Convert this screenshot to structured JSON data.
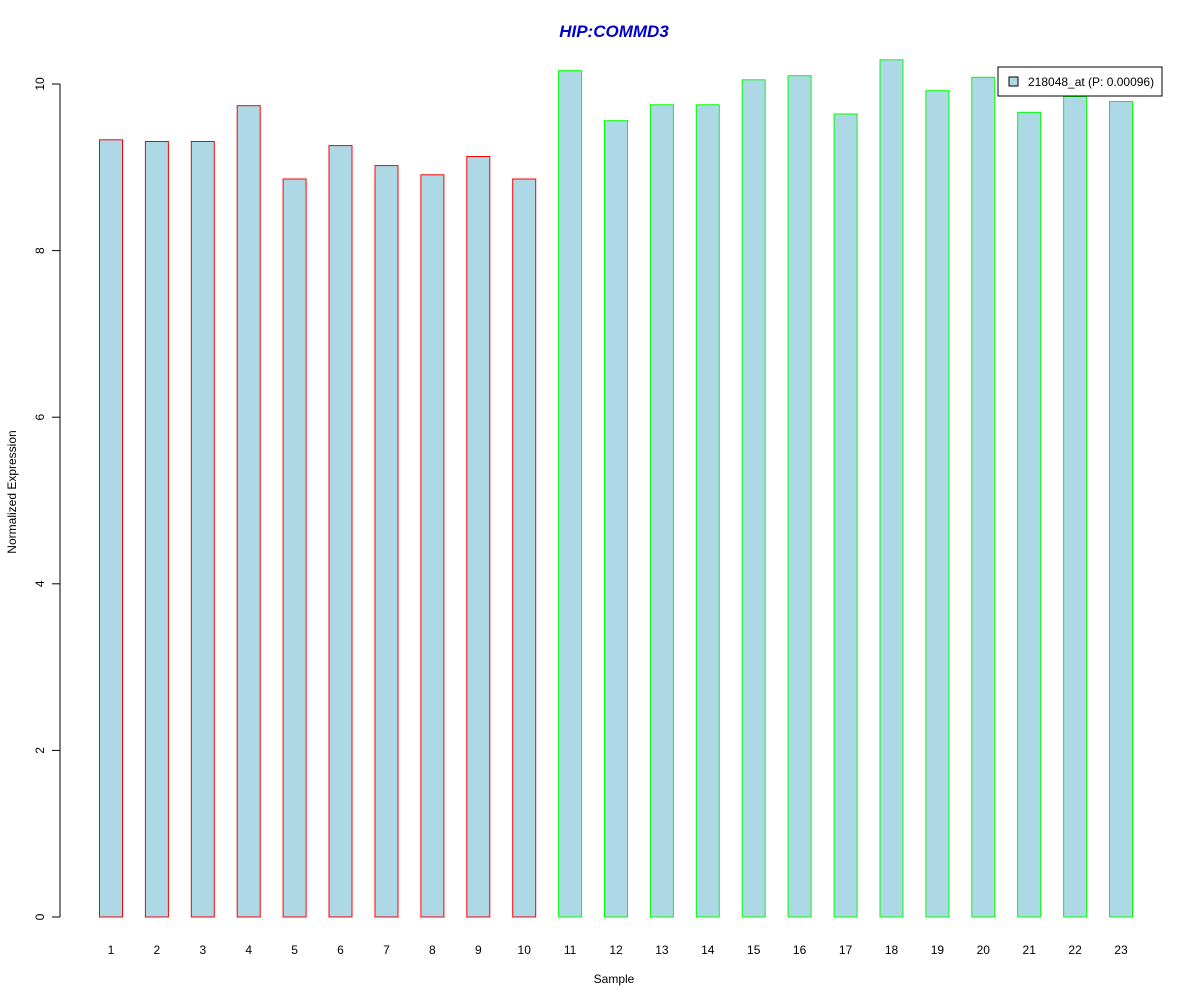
{
  "chart_data": {
    "type": "bar",
    "title": "HIP:COMMD3",
    "xlabel": "Sample",
    "ylabel": "Normalized Expression",
    "ylim": [
      0,
      10.4
    ],
    "yticks": [
      0,
      2,
      4,
      6,
      8,
      10
    ],
    "categories": [
      "1",
      "2",
      "3",
      "4",
      "5",
      "6",
      "7",
      "8",
      "9",
      "10",
      "11",
      "12",
      "13",
      "14",
      "15",
      "16",
      "17",
      "18",
      "19",
      "20",
      "21",
      "22",
      "23"
    ],
    "series": [
      {
        "name": "218048_at (P: 0.00096)",
        "values": [
          9.33,
          9.31,
          9.31,
          9.74,
          8.86,
          9.26,
          9.02,
          8.91,
          9.13,
          8.86,
          10.16,
          9.56,
          9.75,
          9.75,
          10.05,
          10.1,
          9.64,
          10.29,
          9.92,
          10.08,
          9.66,
          9.85,
          9.79
        ]
      }
    ],
    "fill_color": "#ADD8E6",
    "group_border_colors": [
      "#FF0000",
      "#FF0000",
      "#FF0000",
      "#FF0000",
      "#FF0000",
      "#FF0000",
      "#FF0000",
      "#FF0000",
      "#FF0000",
      "#FF0000",
      "#00FF00",
      "#00FF00",
      "#00FF00",
      "#00FF00",
      "#00FF00",
      "#00FF00",
      "#00FF00",
      "#00FF00",
      "#00FF00",
      "#00FF00",
      "#00FF00",
      "#00FF00",
      "#00FF00"
    ],
    "title_color": "#0000CD",
    "legend": {
      "label": "218048_at (P: 0.00096)",
      "placement": "top-right"
    },
    "grid": false
  }
}
